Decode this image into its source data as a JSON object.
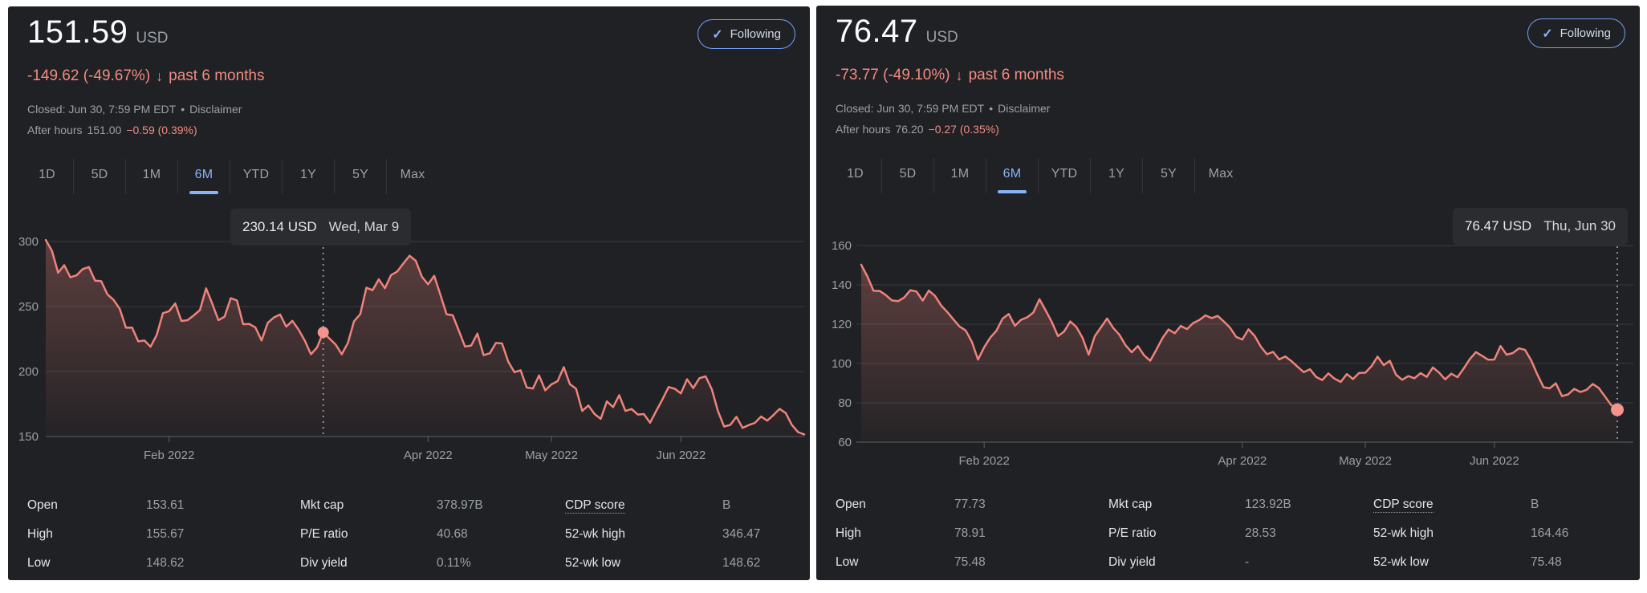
{
  "colors": {
    "panel_bg": "#202124",
    "negative_red": "#f28b82",
    "line_red": "#ef837b",
    "accent_blue": "#8ab4f8",
    "secondary_text": "#9aa0a6",
    "gridline": "#3a3c40"
  },
  "panels": [
    {
      "price": "151.59",
      "currency": "USD",
      "change": "-149.62 (-49.67%)",
      "change_arrow": "↓",
      "change_period": "past 6 months",
      "closed_line": "Closed: Jun 30, 7:59 PM EDT",
      "separator": "•",
      "disclaimer": "Disclaimer",
      "after_hours_label": "After hours",
      "after_hours_price": "151.00",
      "after_hours_change": "−0.59 (0.39%)",
      "following_check": "✓",
      "following_label": "Following",
      "tabs": [
        "1D",
        "5D",
        "1M",
        "6M",
        "YTD",
        "1Y",
        "5Y",
        "Max"
      ],
      "active_tab": "6M",
      "tooltip": {
        "value": "230.14 USD",
        "date": "Wed, Mar 9"
      },
      "stats": [
        {
          "label": "Open",
          "value": "153.61"
        },
        {
          "label": "High",
          "value": "155.67"
        },
        {
          "label": "Low",
          "value": "148.62"
        },
        {
          "label": "Mkt cap",
          "value": "378.97B"
        },
        {
          "label": "P/E ratio",
          "value": "40.68"
        },
        {
          "label": "Div yield",
          "value": "0.11%"
        },
        {
          "label": "CDP score",
          "value": "B"
        },
        {
          "label": "52-wk high",
          "value": "346.47"
        },
        {
          "label": "52-wk low",
          "value": "148.62"
        }
      ]
    },
    {
      "price": "76.47",
      "currency": "USD",
      "change": "-73.77 (-49.10%)",
      "change_arrow": "↓",
      "change_period": "past 6 months",
      "closed_line": "Closed: Jun 30, 7:59 PM EDT",
      "separator": "•",
      "disclaimer": "Disclaimer",
      "after_hours_label": "After hours",
      "after_hours_price": "76.20",
      "after_hours_change": "−0.27 (0.35%)",
      "following_check": "✓",
      "following_label": "Following",
      "tabs": [
        "1D",
        "5D",
        "1M",
        "6M",
        "YTD",
        "1Y",
        "5Y",
        "Max"
      ],
      "active_tab": "6M",
      "tooltip": {
        "value": "76.47 USD",
        "date": "Thu, Jun 30"
      },
      "stats": [
        {
          "label": "Open",
          "value": "77.73"
        },
        {
          "label": "High",
          "value": "78.91"
        },
        {
          "label": "Low",
          "value": "75.48"
        },
        {
          "label": "Mkt cap",
          "value": "123.92B"
        },
        {
          "label": "P/E ratio",
          "value": "28.53"
        },
        {
          "label": "Div yield",
          "value": "-"
        },
        {
          "label": "CDP score",
          "value": "B"
        },
        {
          "label": "52-wk high",
          "value": "164.46"
        },
        {
          "label": "52-wk low",
          "value": "75.48"
        }
      ]
    }
  ],
  "chart_data": [
    {
      "type": "area",
      "title": "6M price history, left panel (USD)",
      "x_unit": "trading days, Jan 3 - Jun 30, 2022",
      "x_tick_labels": [
        "Feb 2022",
        "Apr 2022",
        "May 2022",
        "Jun 2022"
      ],
      "x_tick_day_index": [
        20,
        62,
        82,
        103
      ],
      "y_tick_labels": [
        "300",
        "250",
        "200",
        "150"
      ],
      "y_ticks": [
        300,
        250,
        200,
        150
      ],
      "ylim": [
        148,
        305
      ],
      "grid": true,
      "legend": "none",
      "line_color": "#ef837b",
      "crosshair": {
        "index": 45,
        "value": 230.14,
        "date": "Wed, Mar 9"
      },
      "values": [
        301.2,
        292.9,
        276.0,
        281.8,
        272.5,
        274.0,
        278.8,
        280.4,
        269.9,
        269.5,
        259.4,
        255.1,
        248.2,
        233.7,
        233.8,
        223.2,
        223.9,
        219.1,
        228.2,
        244.9,
        246.4,
        252.4,
        238.9,
        239.5,
        243.2,
        247.3,
        264.0,
        252.3,
        239.5,
        242.2,
        256.4,
        254.7,
        236.4,
        236.6,
        233.9,
        223.9,
        237.5,
        241.6,
        243.9,
        234.5,
        239.0,
        232.2,
        223.8,
        213.3,
        218.5,
        230.14,
        225.4,
        220.8,
        213.3,
        222.1,
        238.7,
        244.1,
        264.5,
        262.6,
        270.9,
        264.1,
        274.2,
        276.9,
        283.2,
        289.1,
        285.2,
        272.9,
        267.1,
        273.6,
        259.0,
        244.1,
        243.3,
        231.2,
        219.2,
        220.0,
        229.2,
        212.6,
        214.0,
        222.0,
        221.6,
        207.6,
        199.5,
        201.0,
        187.7,
        186.9,
        197.0,
        185.5,
        190.1,
        192.6,
        203.4,
        190.3,
        186.8,
        169.7,
        173.9,
        167.3,
        163.6,
        177.1,
        172.6,
        181.8,
        169.7,
        171.2,
        166.9,
        167.3,
        160.6,
        169.7,
        178.5,
        188.1,
        186.7,
        183.2,
        194.1,
        187.2,
        194.9,
        196.3,
        186.5,
        169.7,
        157.7,
        158.9,
        165.2,
        156.6,
        158.8,
        160.5,
        165.4,
        162.2,
        166.5,
        171.3,
        168.0,
        158.9,
        153.4,
        151.59
      ]
    },
    {
      "type": "area",
      "title": "6M price history, right panel (USD)",
      "x_unit": "trading days, Jan 3 - Jun 30, 2022",
      "x_tick_labels": [
        "Feb 2022",
        "Apr 2022",
        "May 2022",
        "Jun 2022"
      ],
      "x_tick_day_index": [
        20,
        62,
        82,
        103
      ],
      "y_tick_labels": [
        "160",
        "140",
        "120",
        "100",
        "80",
        "60"
      ],
      "y_ticks": [
        160,
        140,
        120,
        100,
        80,
        60
      ],
      "ylim": [
        58,
        162
      ],
      "grid": true,
      "legend": "none",
      "line_color": "#ef837b",
      "crosshair": {
        "index": 123,
        "value": 76.47,
        "date": "Thu, Jun 30"
      },
      "values": [
        150.24,
        144.3,
        137.0,
        136.9,
        134.8,
        132.1,
        131.7,
        133.6,
        137.3,
        136.6,
        132.0,
        137.1,
        134.4,
        129.5,
        126.2,
        122.4,
        118.8,
        116.8,
        111.0,
        102.0,
        108.3,
        113.2,
        116.7,
        122.8,
        125.2,
        119.2,
        122.2,
        123.5,
        125.9,
        132.7,
        127.0,
        121.2,
        113.9,
        116.2,
        121.4,
        118.6,
        113.1,
        104.5,
        113.9,
        118.4,
        122.9,
        118.1,
        114.6,
        109.3,
        105.7,
        108.9,
        104.2,
        101.4,
        106.9,
        112.9,
        117.3,
        115.4,
        119.1,
        117.5,
        120.6,
        122.1,
        124.5,
        123.1,
        124.2,
        121.3,
        118.2,
        113.5,
        112.2,
        117.4,
        114.1,
        108.6,
        104.7,
        105.9,
        102.1,
        103.6,
        101.2,
        98.3,
        95.6,
        97.1,
        93.2,
        91.6,
        95.0,
        92.3,
        90.6,
        94.6,
        92.1,
        95.2,
        95.3,
        98.6,
        103.5,
        99.2,
        101.4,
        94.3,
        91.7,
        93.6,
        92.5,
        95.1,
        93.2,
        98.0,
        95.4,
        91.9,
        94.8,
        93.0,
        97.4,
        102.2,
        105.8,
        103.9,
        101.9,
        102.0,
        108.9,
        104.5,
        105.3,
        107.7,
        106.9,
        101.5,
        94.4,
        87.9,
        87.4,
        89.9,
        83.4,
        84.3,
        87.1,
        85.5,
        86.6,
        89.6,
        87.5,
        83.2,
        78.9,
        76.47
      ]
    }
  ]
}
